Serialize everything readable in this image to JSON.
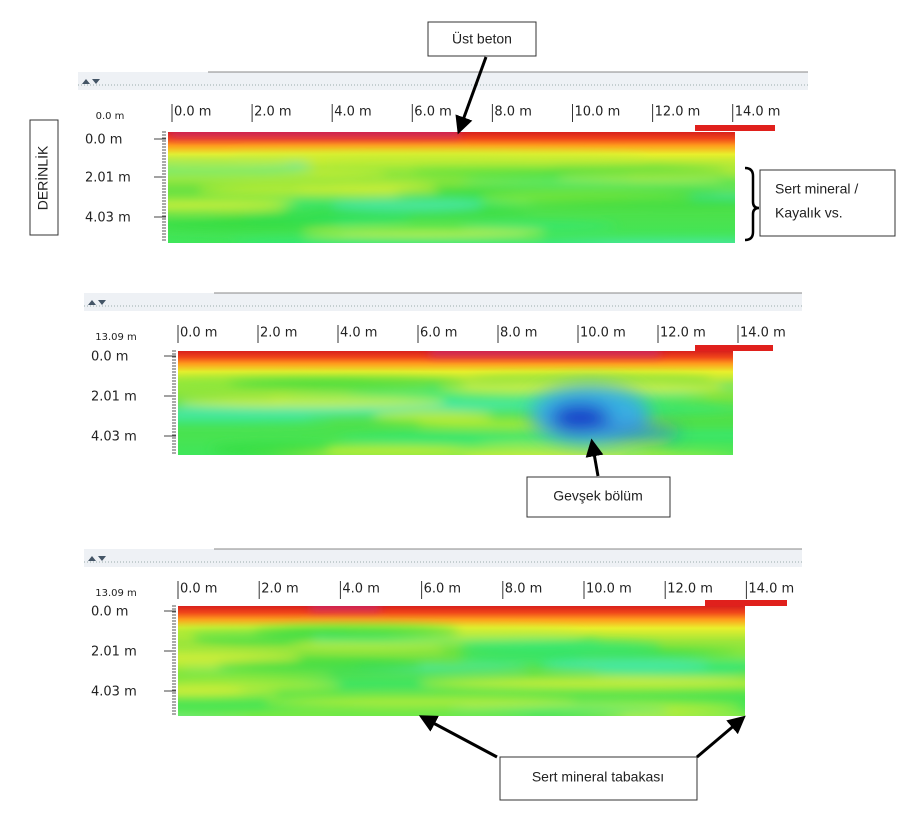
{
  "annotations": {
    "top": "Üst beton",
    "depth": "DERİNLİK",
    "right": [
      "Sert mineral /",
      "Kayalık vs."
    ],
    "middle": "Gevşek bölüm",
    "bottom": "Sert mineral tabakası"
  },
  "panels": [
    {
      "offset": "0.0 m",
      "x_ticks": [
        "0.0 m",
        "2.0 m",
        "4.0 m",
        "6.0 m",
        "8.0 m",
        "10.0 m",
        "12.0 m",
        "14.0 m"
      ],
      "y_ticks": [
        "0.0 m",
        "2.01 m",
        "4.03 m"
      ]
    },
    {
      "offset": "13.09 m",
      "x_ticks": [
        "0.0 m",
        "2.0 m",
        "4.0 m",
        "6.0 m",
        "8.0 m",
        "10.0 m",
        "12.0 m",
        "14.0 m"
      ],
      "y_ticks": [
        "0.0 m",
        "2.01 m",
        "4.03 m"
      ]
    },
    {
      "offset": "13.09 m",
      "x_ticks": [
        "0.0 m",
        "2.0 m",
        "4.0 m",
        "6.0 m",
        "8.0 m",
        "10.0 m",
        "12.0 m",
        "14.0 m"
      ],
      "y_ticks": [
        "0.0 m",
        "2.01 m",
        "4.03 m"
      ]
    }
  ]
}
